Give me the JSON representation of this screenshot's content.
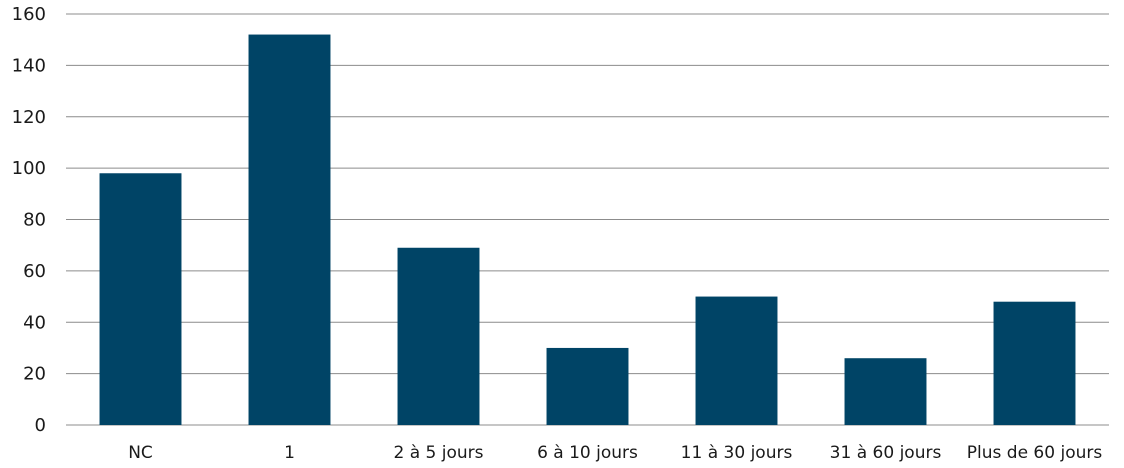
{
  "chart_data": {
    "type": "bar",
    "title": "",
    "xlabel": "",
    "ylabel": "",
    "categories": [
      "NC",
      "1",
      "2 à 5 jours",
      "6 à 10 jours",
      "11 à 30 jours",
      "31 à 60 jours",
      "Plus de 60 jours"
    ],
    "values": [
      98,
      152,
      69,
      30,
      50,
      26,
      48
    ],
    "ylim": [
      0,
      160
    ],
    "yticks": [
      "0",
      "20",
      "40",
      "60",
      "80",
      "100",
      "120",
      "140",
      "160"
    ],
    "grid": true,
    "legend": "none",
    "bar_color": "#004466"
  }
}
